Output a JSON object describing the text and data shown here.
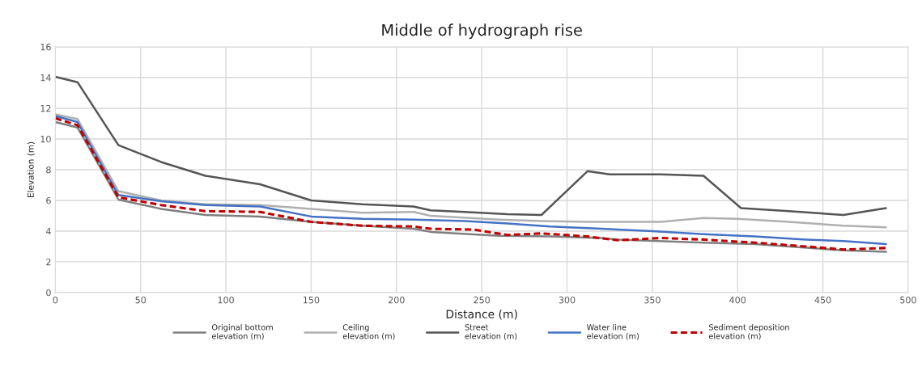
{
  "chart_data": {
    "type": "line",
    "title": "Middle of hydrograph rise",
    "xlabel": "Distance (m)",
    "ylabel": "Elevation (m)",
    "xlim": [
      0,
      500
    ],
    "xticks": [
      0,
      50,
      100,
      150,
      200,
      250,
      300,
      350,
      400,
      450,
      500
    ],
    "ylim": [
      0,
      16
    ],
    "yticks": [
      0,
      2,
      4,
      6,
      8,
      10,
      12,
      14,
      16
    ],
    "grid": true,
    "legend": "bottom",
    "line_style": "solid",
    "marker": "none",
    "series": [
      {
        "name": "Original bottom\nelevation (m)",
        "color": "#7f7f7f",
        "x": [
          0,
          13,
          37,
          62,
          88,
          120,
          150,
          180,
          210,
          220,
          260,
          290,
          320,
          330,
          380,
          410,
          462,
          487
        ],
        "values": [
          11.1,
          10.75,
          6.05,
          5.45,
          5.05,
          4.95,
          4.6,
          4.35,
          4.15,
          3.95,
          3.7,
          3.65,
          3.55,
          3.45,
          3.25,
          3.15,
          2.75,
          2.65
        ]
      },
      {
        "name": "Ceiling\nelevation (m)",
        "color": "#b0b0b0",
        "x": [
          0,
          13,
          37,
          62,
          88,
          120,
          150,
          180,
          210,
          220,
          260,
          285,
          312,
          355,
          380,
          400,
          430,
          462,
          487
        ],
        "values": [
          11.6,
          11.3,
          6.6,
          6.0,
          5.75,
          5.7,
          5.45,
          5.2,
          5.25,
          5.0,
          4.75,
          4.65,
          4.6,
          4.6,
          4.85,
          4.8,
          4.6,
          4.35,
          4.25
        ]
      },
      {
        "name": "Street\nelevation (m)",
        "color": "#555555",
        "x": [
          0,
          13,
          37,
          62,
          88,
          120,
          150,
          180,
          210,
          220,
          240,
          265,
          285,
          312,
          325,
          355,
          380,
          402,
          430,
          462,
          487
        ],
        "values": [
          14.05,
          13.7,
          9.6,
          8.5,
          7.6,
          7.05,
          6.0,
          5.75,
          5.6,
          5.35,
          5.25,
          5.1,
          5.05,
          7.9,
          7.7,
          7.7,
          7.6,
          5.5,
          5.3,
          5.05,
          5.5
        ]
      },
      {
        "name": "Water line\nelevation (m)",
        "color": "#4472c4",
        "x": [
          0,
          13,
          37,
          62,
          88,
          120,
          150,
          180,
          210,
          240,
          265,
          290,
          320,
          350,
          380,
          410,
          440,
          462,
          487
        ],
        "values": [
          11.5,
          11.1,
          6.35,
          5.95,
          5.7,
          5.6,
          4.95,
          4.8,
          4.75,
          4.65,
          4.5,
          4.3,
          4.15,
          4.0,
          3.8,
          3.65,
          3.45,
          3.35,
          3.15
        ]
      },
      {
        "name": "Sediment deposition\nelevation (m)",
        "color": "#c00000",
        "line_style": "dashed",
        "x": [
          0,
          13,
          37,
          62,
          88,
          120,
          150,
          180,
          210,
          220,
          245,
          265,
          285,
          312,
          330,
          355,
          380,
          410,
          440,
          462,
          487
        ],
        "values": [
          11.35,
          10.9,
          6.2,
          5.7,
          5.3,
          5.25,
          4.6,
          4.35,
          4.3,
          4.15,
          4.1,
          3.75,
          3.85,
          3.65,
          3.4,
          3.55,
          3.45,
          3.25,
          3.0,
          2.8,
          2.9
        ]
      }
    ]
  }
}
